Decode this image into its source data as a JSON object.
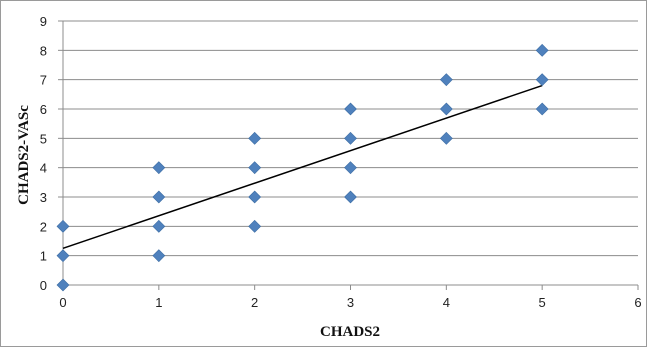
{
  "chart_data": {
    "type": "scatter",
    "title": "",
    "xlabel": "CHADS2",
    "ylabel": "CHADS2-VASc",
    "xlim": [
      0,
      6
    ],
    "ylim": [
      0,
      9
    ],
    "x_ticks": [
      0,
      1,
      2,
      3,
      4,
      5,
      6
    ],
    "y_ticks": [
      0,
      1,
      2,
      3,
      4,
      5,
      6,
      7,
      8,
      9
    ],
    "grid": "horizontal",
    "legend": "none",
    "marker": "diamond",
    "marker_color": "#4f81bd",
    "trendline_color": "#000000",
    "points": [
      {
        "x": 0,
        "y": 0
      },
      {
        "x": 0,
        "y": 1
      },
      {
        "x": 0,
        "y": 2
      },
      {
        "x": 1,
        "y": 1
      },
      {
        "x": 1,
        "y": 2
      },
      {
        "x": 1,
        "y": 3
      },
      {
        "x": 1,
        "y": 4
      },
      {
        "x": 2,
        "y": 2
      },
      {
        "x": 2,
        "y": 3
      },
      {
        "x": 2,
        "y": 4
      },
      {
        "x": 2,
        "y": 5
      },
      {
        "x": 3,
        "y": 3
      },
      {
        "x": 3,
        "y": 4
      },
      {
        "x": 3,
        "y": 5
      },
      {
        "x": 3,
        "y": 6
      },
      {
        "x": 4,
        "y": 5
      },
      {
        "x": 4,
        "y": 6
      },
      {
        "x": 4,
        "y": 7
      },
      {
        "x": 5,
        "y": 6
      },
      {
        "x": 5,
        "y": 7
      },
      {
        "x": 5,
        "y": 8
      }
    ],
    "trendline": {
      "x": [
        0,
        5
      ],
      "y": [
        1.25,
        6.8
      ]
    }
  }
}
